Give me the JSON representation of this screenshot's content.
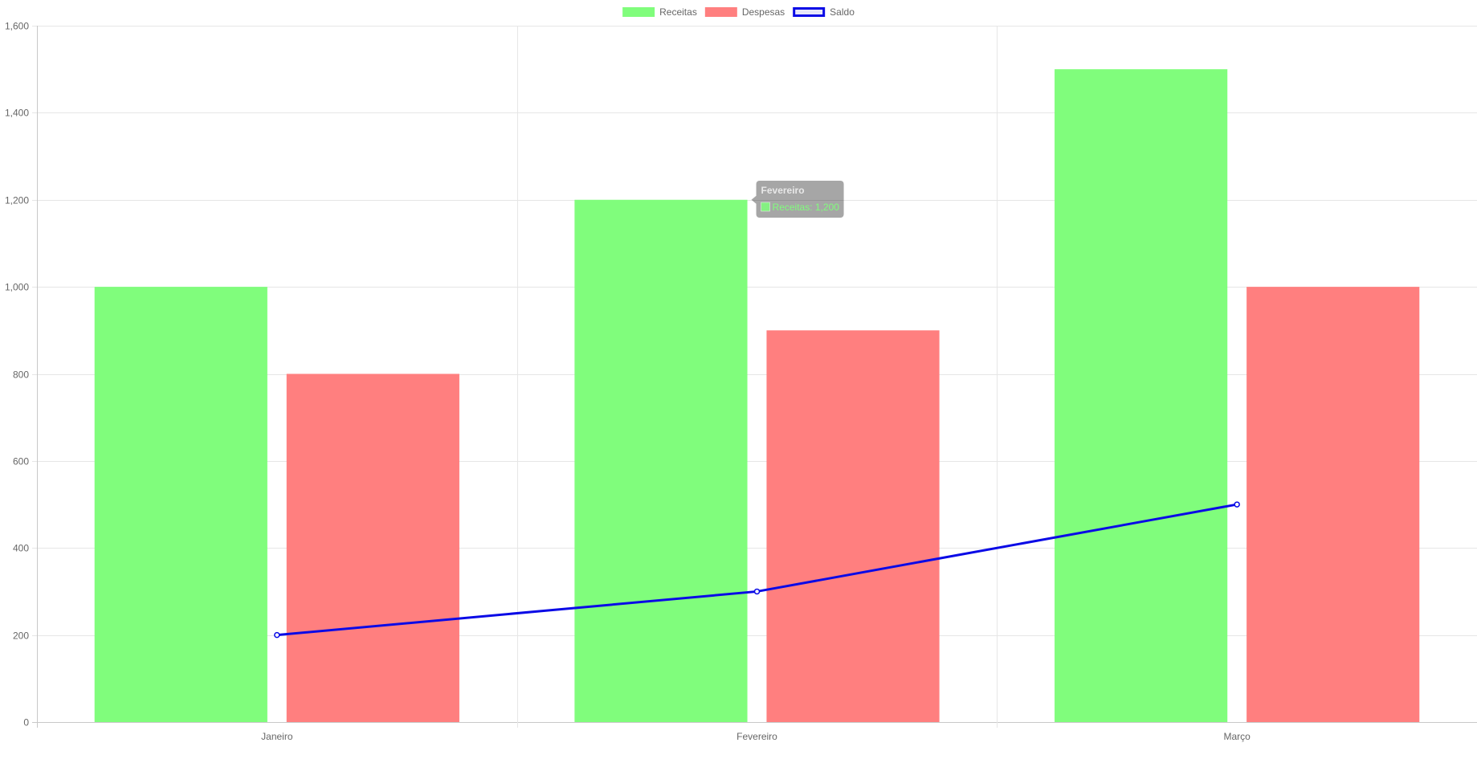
{
  "chart_data": {
    "type": "bar",
    "title": "",
    "xlabel": "",
    "ylabel": "",
    "categories": [
      "Janeiro",
      "Fevereiro",
      "Março"
    ],
    "ylim": [
      0,
      1600
    ],
    "yticks": [
      0,
      200,
      400,
      600,
      800,
      1000,
      1200,
      1400,
      1600
    ],
    "ytick_labels": [
      "0",
      "200",
      "400",
      "600",
      "800",
      "1,000",
      "1,200",
      "1,400",
      "1,600"
    ],
    "grid": true,
    "legend": {
      "position": "top",
      "entries": [
        "Receitas",
        "Despesas",
        "Saldo"
      ]
    },
    "series": [
      {
        "name": "Receitas",
        "kind": "bar",
        "values": [
          1000,
          1200,
          1500
        ],
        "color": "#80fd7c"
      },
      {
        "name": "Despesas",
        "kind": "bar",
        "values": [
          800,
          900,
          1000
        ],
        "color": "#ff7f7f"
      },
      {
        "name": "Saldo",
        "kind": "line",
        "values": [
          200,
          300,
          500
        ],
        "color": "#0a0ae6"
      }
    ],
    "tooltip": {
      "title": "Fevereiro",
      "label": "Receitas: 1,200",
      "category_index": 1,
      "series_index": 0
    }
  }
}
